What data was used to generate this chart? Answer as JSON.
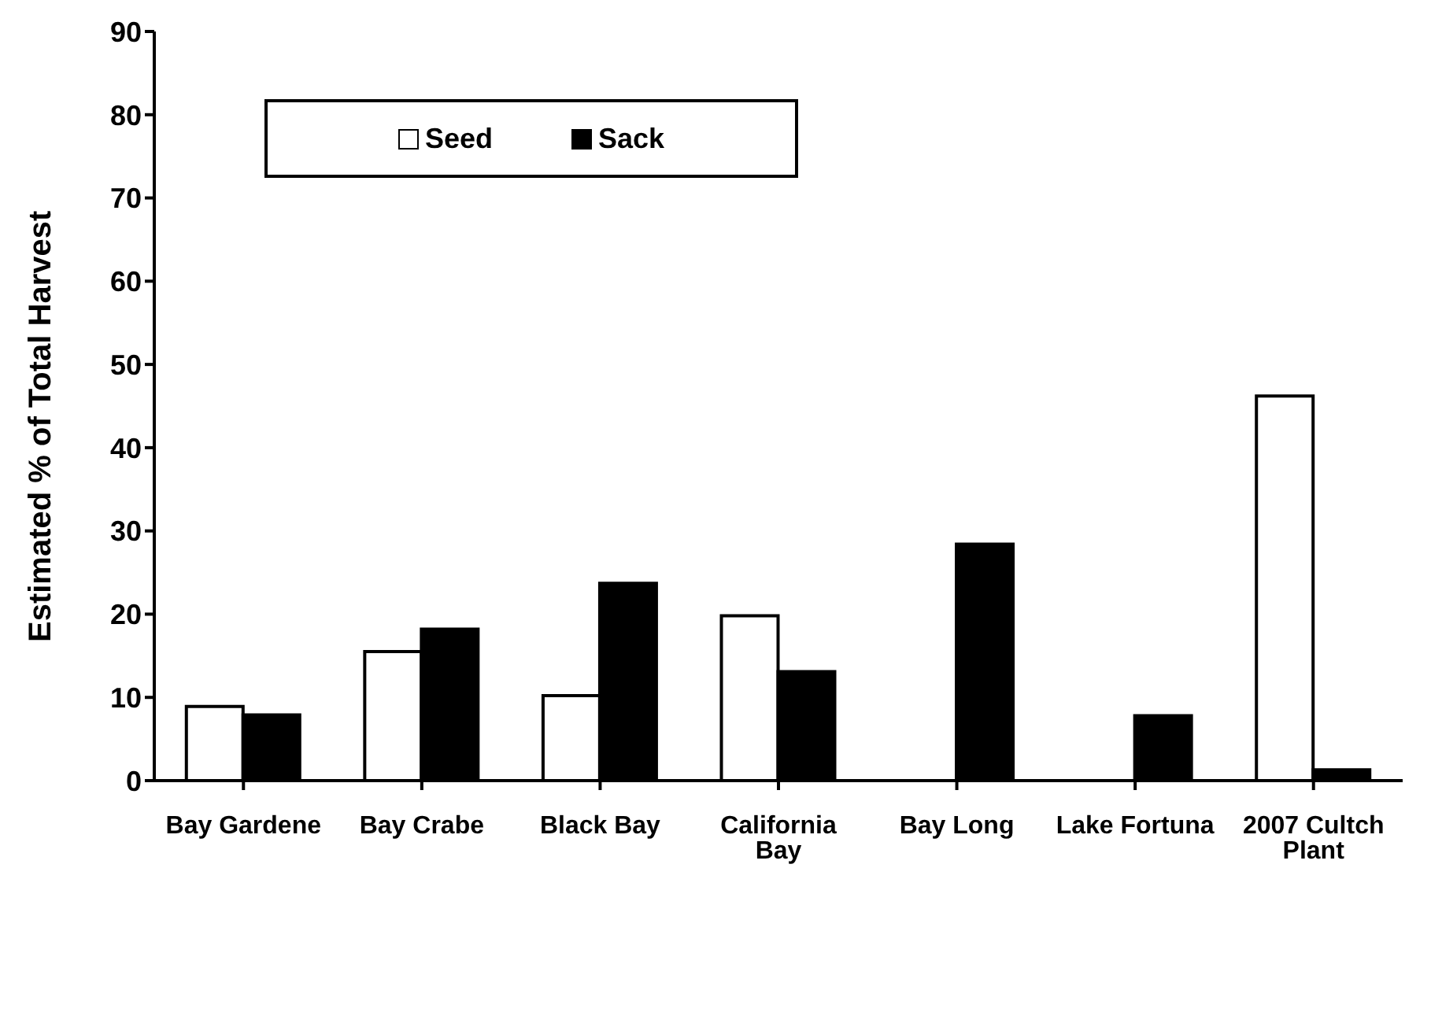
{
  "chart_data": {
    "type": "bar",
    "ylabel": "Estimated % of Total Harvest",
    "categories": [
      "Bay Gardene",
      "Bay Crabe",
      "Black Bay",
      "California Bay",
      "Bay Long",
      "Lake Fortuna",
      "2007 Cultch Plant"
    ],
    "series": [
      {
        "name": "Seed",
        "color": "#ffffff",
        "values": [
          8.9,
          15.5,
          10.2,
          19.8,
          null,
          null,
          46.2
        ]
      },
      {
        "name": "Sack",
        "color": "#000000",
        "values": [
          7.9,
          18.2,
          23.7,
          13.1,
          28.4,
          7.8,
          1.3
        ]
      }
    ],
    "ylim": [
      0,
      90
    ],
    "yticks": [
      0,
      10,
      20,
      30,
      40,
      50,
      60,
      70,
      80,
      90
    ],
    "grid": false,
    "legend": "top left"
  }
}
